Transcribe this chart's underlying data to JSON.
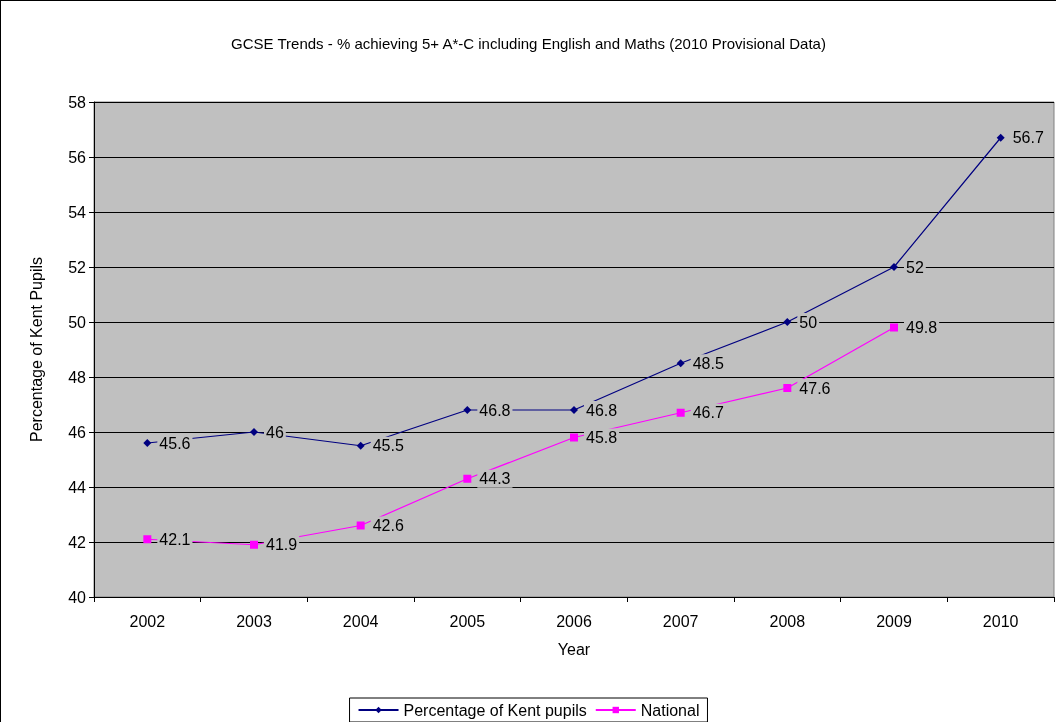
{
  "chart_data": {
    "type": "line",
    "title": "GCSE Trends - % achieving 5+ A*-C including English and Maths (2010 Provisional Data)",
    "xlabel": "Year",
    "ylabel": "Percentage of Kent Pupils",
    "categories": [
      "2002",
      "2003",
      "2004",
      "2005",
      "2006",
      "2007",
      "2008",
      "2009",
      "2010"
    ],
    "series": [
      {
        "name": "Percentage of Kent pupils",
        "color": "#000080",
        "marker": "diamond",
        "values": [
          45.6,
          46,
          45.5,
          46.8,
          46.8,
          48.5,
          50,
          52,
          56.7
        ]
      },
      {
        "name": "National",
        "color": "#ff00ff",
        "marker": "square",
        "values": [
          42.1,
          41.9,
          42.6,
          44.3,
          45.8,
          46.7,
          47.6,
          49.8,
          null
        ]
      }
    ],
    "ylim": [
      40,
      58
    ],
    "yticks": [
      40,
      42,
      44,
      46,
      48,
      50,
      52,
      54,
      56,
      58
    ],
    "grid": "y",
    "legend": "bottom",
    "data_labels": true
  }
}
